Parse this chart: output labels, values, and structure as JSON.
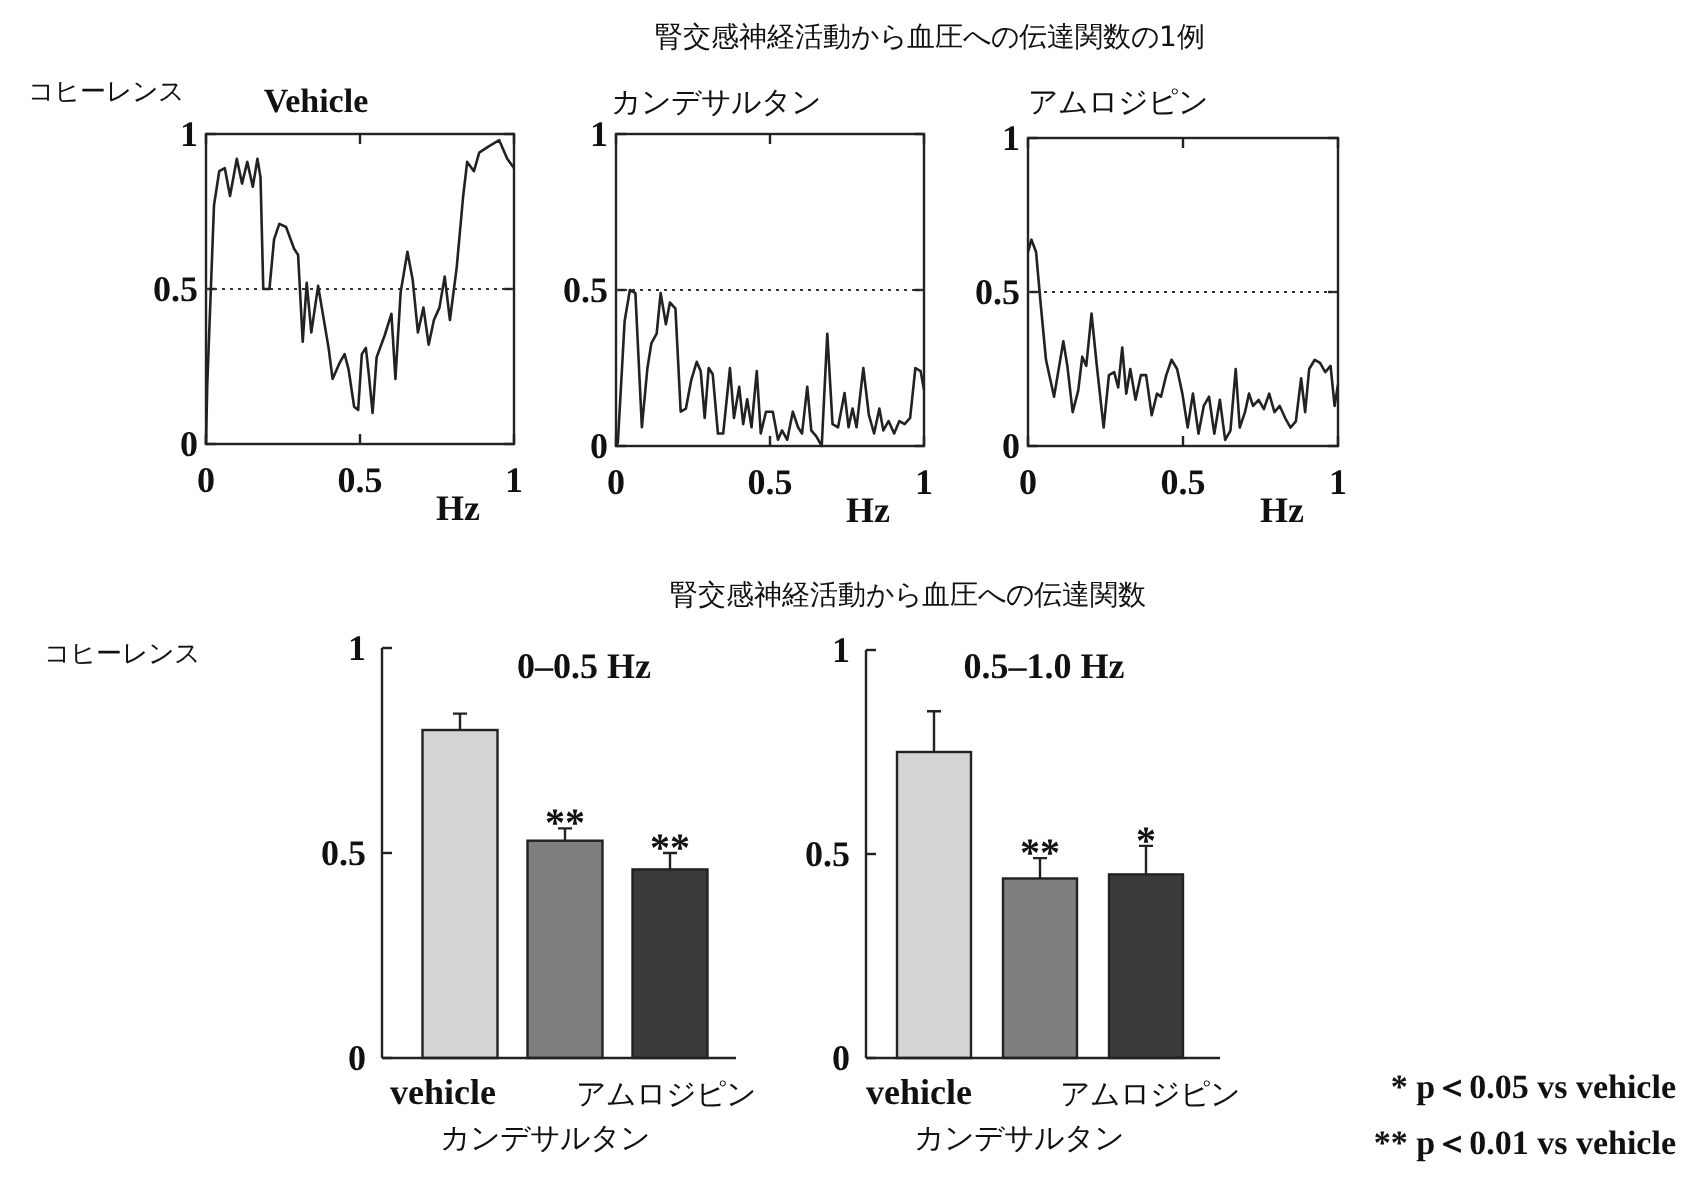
{
  "chart_data": [
    {
      "type": "line",
      "title": "Vehicle",
      "xlabel": "Hz",
      "ylabel": "コヒーレンス",
      "annotations": [
        "腎交感神経活動から血圧への伝達関数の1例"
      ],
      "x": [
        0,
        0.004,
        0.026,
        0.043,
        0.061,
        0.078,
        0.1,
        0.117,
        0.134,
        0.152,
        0.167,
        0.177,
        0.186,
        0.206,
        0.221,
        0.238,
        0.26,
        0.286,
        0.299,
        0.314,
        0.327,
        0.342,
        0.364,
        0.381,
        0.398,
        0.411,
        0.433,
        0.45,
        0.463,
        0.481,
        0.494,
        0.506,
        0.519,
        0.528,
        0.541,
        0.554,
        0.58,
        0.602,
        0.615,
        0.632,
        0.654,
        0.671,
        0.688,
        0.706,
        0.723,
        0.74,
        0.758,
        0.775,
        0.792,
        0.814,
        0.835,
        0.848,
        0.87,
        0.887,
        0.918,
        0.952,
        0.978,
        1
      ],
      "series": [
        {
          "color": "#222222",
          "values": [
            0,
            0.19,
            0.77,
            0.88,
            0.89,
            0.8,
            0.92,
            0.84,
            0.91,
            0.83,
            0.92,
            0.86,
            0.5,
            0.5,
            0.66,
            0.71,
            0.7,
            0.63,
            0.61,
            0.33,
            0.52,
            0.36,
            0.51,
            0.41,
            0.31,
            0.21,
            0.26,
            0.29,
            0.24,
            0.12,
            0.11,
            0.29,
            0.31,
            0.23,
            0.1,
            0.28,
            0.35,
            0.42,
            0.21,
            0.49,
            0.62,
            0.53,
            0.36,
            0.44,
            0.32,
            0.4,
            0.44,
            0.54,
            0.4,
            0.57,
            0.8,
            0.91,
            0.88,
            0.94,
            0.96,
            0.98,
            0.92,
            0.89
          ]
        }
      ],
      "xlim": [
        0,
        1
      ],
      "ylim": [
        0,
        1
      ],
      "xticks": [
        0,
        0.5,
        1
      ],
      "yticks": [
        0,
        0.5,
        1
      ],
      "ref_lines": [
        {
          "axis": "y",
          "value": 0.5,
          "line_style": "dotted"
        }
      ]
    },
    {
      "type": "line",
      "title": "カンデサルタン",
      "xlabel": "Hz",
      "x": [
        0,
        0.006,
        0.028,
        0.045,
        0.063,
        0.084,
        0.102,
        0.115,
        0.132,
        0.145,
        0.162,
        0.175,
        0.193,
        0.21,
        0.227,
        0.244,
        0.262,
        0.275,
        0.288,
        0.301,
        0.314,
        0.331,
        0.348,
        0.37,
        0.383,
        0.4,
        0.413,
        0.426,
        0.44,
        0.457,
        0.47,
        0.487,
        0.509,
        0.526,
        0.539,
        0.556,
        0.574,
        0.591,
        0.604,
        0.621,
        0.634,
        0.651,
        0.668,
        0.686,
        0.703,
        0.721,
        0.742,
        0.755,
        0.768,
        0.781,
        0.803,
        0.821,
        0.838,
        0.855,
        0.868,
        0.885,
        0.903,
        0.92,
        0.937,
        0.955,
        0.972,
        0.989,
        1
      ],
      "series": [
        {
          "color": "#222222",
          "values": [
            0,
            0.01,
            0.4,
            0.5,
            0.49,
            0.06,
            0.25,
            0.33,
            0.36,
            0.49,
            0.39,
            0.46,
            0.44,
            0.11,
            0.12,
            0.21,
            0.27,
            0.24,
            0.09,
            0.25,
            0.23,
            0.04,
            0.04,
            0.25,
            0.09,
            0.19,
            0.07,
            0.15,
            0.06,
            0.24,
            0.04,
            0.11,
            0.11,
            0.02,
            0.05,
            0.02,
            0.11,
            0.06,
            0.04,
            0.19,
            0.05,
            0.03,
            0,
            0.36,
            0.07,
            0.06,
            0.17,
            0.06,
            0.12,
            0.06,
            0.25,
            0.1,
            0.04,
            0.12,
            0.05,
            0.08,
            0.04,
            0.08,
            0.07,
            0.09,
            0.25,
            0.24,
            0.18
          ]
        }
      ],
      "xlim": [
        0,
        1
      ],
      "ylim": [
        0,
        1
      ],
      "xticks": [
        0,
        0.5,
        1
      ],
      "yticks": [
        0,
        0.5,
        1
      ],
      "ref_lines": [
        {
          "axis": "y",
          "value": 0.5,
          "line_style": "dotted"
        }
      ]
    },
    {
      "type": "line",
      "title": "アムロジピン",
      "xlabel": "Hz",
      "x": [
        0,
        0.011,
        0.026,
        0.041,
        0.058,
        0.084,
        0.114,
        0.127,
        0.144,
        0.162,
        0.175,
        0.188,
        0.205,
        0.222,
        0.244,
        0.261,
        0.278,
        0.291,
        0.304,
        0.317,
        0.33,
        0.347,
        0.364,
        0.381,
        0.399,
        0.416,
        0.429,
        0.446,
        0.463,
        0.481,
        0.498,
        0.515,
        0.532,
        0.55,
        0.567,
        0.584,
        0.601,
        0.619,
        0.636,
        0.653,
        0.67,
        0.683,
        0.7,
        0.713,
        0.726,
        0.744,
        0.761,
        0.778,
        0.795,
        0.812,
        0.83,
        0.847,
        0.864,
        0.881,
        0.894,
        0.907,
        0.925,
        0.942,
        0.959,
        0.976,
        0.989,
        1
      ],
      "series": [
        {
          "color": "#222222",
          "values": [
            0.63,
            0.67,
            0.63,
            0.46,
            0.28,
            0.16,
            0.34,
            0.26,
            0.11,
            0.18,
            0.29,
            0.26,
            0.43,
            0.26,
            0.06,
            0.23,
            0.24,
            0.19,
            0.32,
            0.17,
            0.25,
            0.15,
            0.23,
            0.23,
            0.1,
            0.17,
            0.16,
            0.23,
            0.28,
            0.25,
            0.17,
            0.06,
            0.17,
            0.04,
            0.13,
            0.16,
            0.04,
            0.15,
            0.02,
            0.05,
            0.25,
            0.06,
            0.11,
            0.17,
            0.13,
            0.15,
            0.12,
            0.17,
            0.11,
            0.13,
            0.09,
            0.06,
            0.08,
            0.22,
            0.11,
            0.25,
            0.28,
            0.27,
            0.24,
            0.26,
            0.13,
            0.2
          ]
        }
      ],
      "xlim": [
        0,
        1
      ],
      "ylim": [
        0,
        1
      ],
      "xticks": [
        0,
        0.5,
        1
      ],
      "yticks": [
        0,
        0.5,
        1
      ],
      "ref_lines": [
        {
          "axis": "y",
          "value": 0.5,
          "line_style": "dotted"
        }
      ]
    },
    {
      "type": "bar",
      "title": "0–0.5 Hz",
      "ylabel": "コヒーレンス",
      "categories": [
        "vehicle",
        "カンデサルタン",
        "アムロジピン"
      ],
      "values": [
        0.8,
        0.53,
        0.46
      ],
      "colors": [
        "#d4d4d4",
        "#7e7e7e",
        "#3a3a3a"
      ],
      "errors": [
        [
          0.8,
          0.84
        ],
        [
          0.53,
          0.56
        ],
        [
          0.46,
          0.5
        ]
      ],
      "ylim": [
        0,
        1
      ],
      "yticks": [
        0,
        0.5,
        1
      ],
      "annotations": [
        "腎交感神経活動から血圧への伝達関数",
        {
          "text": "**",
          "x": "カンデサルタン",
          "y": 0.56
        },
        {
          "text": "**",
          "x": "アムロジピン",
          "y": 0.5
        }
      ]
    },
    {
      "type": "bar",
      "title": "0.5–1.0 Hz",
      "categories": [
        "vehicle",
        "カンデサルタン",
        "アムロジピン"
      ],
      "values": [
        0.75,
        0.44,
        0.45
      ],
      "colors": [
        "#d4d4d4",
        "#7e7e7e",
        "#3a3a3a"
      ],
      "errors": [
        [
          0.75,
          0.85
        ],
        [
          0.44,
          0.49
        ],
        [
          0.45,
          0.52
        ]
      ],
      "ylim": [
        0,
        1
      ],
      "yticks": [
        0,
        0.5,
        1
      ],
      "annotations": [
        {
          "text": "**",
          "x": "カンデサルタン",
          "y": 0.49
        },
        {
          "text": "*",
          "x": "アムロジピン",
          "y": 0.52
        },
        "* p＜0.05 vs vehicle",
        "** p＜0.01 vs vehicle"
      ]
    }
  ]
}
